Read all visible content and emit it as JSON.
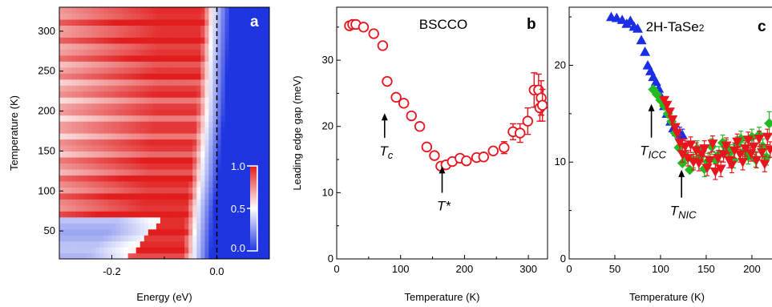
{
  "chart_data": [
    {
      "panel": "a",
      "type": "heatmap",
      "panel_letter": "a",
      "xlabel": "Energy (eV)",
      "ylabel": "Temperature (K)",
      "xlim": [
        -0.3,
        0.1
      ],
      "ylim": [
        15,
        330
      ],
      "xticks": [
        -0.2,
        0.0
      ],
      "xtick_labels": [
        "-0.2",
        "0.0"
      ],
      "yticks": [
        50,
        100,
        150,
        200,
        250,
        300
      ],
      "ytick_labels": [
        "50",
        "100",
        "150",
        "200",
        "250",
        "300"
      ],
      "colorbar": {
        "range": [
          0.0,
          1.0
        ],
        "labels": [
          "0.0",
          "0.5",
          "1.0"
        ],
        "colors": [
          "#1f35e0",
          "#ffffff",
          "#e11d1d"
        ]
      },
      "fermi_line_x": 0.0,
      "edge_profile": {
        "temperatures": [
          20,
          50,
          80,
          100,
          120,
          150,
          175,
          200,
          250,
          300,
          330
        ],
        "edge_energy": [
          -0.045,
          -0.042,
          -0.038,
          -0.034,
          -0.03,
          -0.026,
          -0.022,
          -0.018,
          -0.014,
          -0.01,
          -0.008
        ],
        "low_T_blue_below": 70
      }
    },
    {
      "panel": "b",
      "type": "scatter",
      "panel_letter": "b",
      "title": "BSCCO",
      "xlabel": "Temperature (K)",
      "ylabel": "Leading edge gap (meV)",
      "xlim": [
        0,
        330
      ],
      "ylim": [
        0,
        38
      ],
      "xticks": [
        0,
        100,
        200,
        300
      ],
      "yticks": [
        0,
        10,
        20,
        30
      ],
      "marker_color": "#e8141e",
      "series": [
        {
          "x": [
            20,
            25,
            30,
            42,
            58,
            72,
            79,
            93,
            105,
            117,
            130,
            141,
            153,
            163,
            171,
            181,
            193,
            203,
            219,
            230,
            245,
            262,
            276,
            287,
            299,
            309,
            316,
            318,
            320,
            322
          ],
          "y": [
            35.2,
            35.4,
            35.4,
            35.0,
            34.0,
            32.2,
            26.8,
            24.4,
            23.5,
            21.6,
            20.0,
            16.9,
            15.6,
            14.0,
            14.2,
            14.7,
            15.2,
            14.8,
            15.3,
            15.4,
            16.3,
            16.8,
            19.2,
            19.0,
            20.8,
            25.5,
            25.5,
            22.8,
            24.3,
            23.2
          ],
          "yerr": [
            0,
            0,
            0,
            0,
            0,
            0,
            0,
            0,
            0,
            0,
            0,
            0,
            0,
            0,
            0,
            0,
            0,
            0,
            0,
            0,
            0.6,
            0.9,
            1.2,
            1.4,
            2.0,
            2.6,
            2.4,
            2.0,
            2.6,
            2.4
          ]
        }
      ],
      "annotations": [
        {
          "label": "T",
          "sub": "c",
          "x": 75,
          "y": 17.8,
          "arrow_to_y": 22.0
        },
        {
          "label": "T*",
          "sub": "",
          "x": 165,
          "y": 9.5,
          "arrow_to_y": 14.0
        }
      ]
    },
    {
      "panel": "c",
      "type": "scatter",
      "panel_letter": "c",
      "title": "2H-TaSe",
      "title_sub": "2",
      "xlabel": "Temperature (K)",
      "ylabel": "",
      "xlim": [
        0,
        222
      ],
      "ylim": [
        0,
        26
      ],
      "xticks": [
        0,
        50,
        100,
        150,
        200
      ],
      "yticks": [
        0,
        10,
        20
      ],
      "series": [
        {
          "marker": "triangle-up",
          "color": "#1a2ee8",
          "x": [
            46,
            52,
            58,
            63,
            67,
            71,
            75,
            79,
            83,
            86,
            89,
            92,
            95,
            98,
            101,
            104,
            107,
            111,
            114,
            118,
            121,
            124
          ],
          "y": [
            25.0,
            24.9,
            24.7,
            24.3,
            24.6,
            24.0,
            23.8,
            22.6,
            21.4,
            20.0,
            19.4,
            18.8,
            18.3,
            17.6,
            16.7,
            15.8,
            15.0,
            14.2,
            13.5,
            13.1,
            13.0,
            12.8
          ],
          "yerr": [
            0,
            0,
            0,
            0,
            0,
            0,
            0,
            0,
            0,
            0,
            0,
            0,
            0,
            0,
            0,
            0,
            0,
            0,
            0,
            0.6,
            0.6,
            0.6
          ]
        },
        {
          "marker": "diamond",
          "color": "#22bb22",
          "x": [
            92,
            96,
            100,
            104,
            108,
            112,
            116,
            120,
            124,
            128,
            132,
            136,
            140,
            144,
            148,
            152,
            156,
            160,
            164,
            168,
            172,
            176,
            180,
            184,
            188,
            192,
            196,
            200,
            204,
            208,
            212,
            216,
            219
          ],
          "y": [
            17.5,
            17.0,
            16.4,
            15.8,
            15.0,
            14.2,
            13.0,
            11.5,
            9.9,
            10.6,
            9.2,
            10.2,
            11.4,
            10.6,
            9.3,
            10.1,
            11.6,
            10.2,
            10.8,
            12.0,
            11.5,
            11.0,
            10.2,
            11.8,
            12.4,
            11.2,
            10.6,
            12.6,
            10.3,
            12.8,
            11.6,
            10.5,
            14.0
          ],
          "yerr": [
            0,
            0,
            0,
            0,
            0,
            0,
            0,
            0,
            0,
            0,
            0,
            0.8,
            0.8,
            0.8,
            0.8,
            0.8,
            0.8,
            0.8,
            0.8,
            0.8,
            0.8,
            0.8,
            0.8,
            0.8,
            0.8,
            0.8,
            0.8,
            0.8,
            0.8,
            0.8,
            0.8,
            0.8,
            1.2
          ]
        },
        {
          "marker": "triangle-down",
          "color": "#e8141e",
          "x": [
            104,
            107,
            110,
            113,
            116,
            118,
            121,
            124,
            127,
            130,
            133,
            136,
            139,
            142,
            145,
            148,
            151,
            154,
            157,
            160,
            163,
            166,
            169,
            172,
            175,
            178,
            181,
            184,
            187,
            190,
            193,
            196,
            199,
            202,
            205,
            208,
            211,
            214,
            217,
            220
          ],
          "y": [
            16.4,
            15.9,
            15.2,
            14.4,
            13.6,
            13.0,
            12.0,
            10.8,
            11.6,
            10.4,
            11.8,
            10.0,
            11.2,
            9.9,
            10.8,
            11.4,
            9.4,
            10.2,
            11.9,
            9.0,
            10.4,
            9.3,
            10.8,
            11.7,
            10.2,
            9.7,
            11.2,
            12.1,
            10.8,
            10.0,
            11.4,
            12.3,
            10.9,
            11.6,
            10.2,
            12.4,
            11.0,
            9.8,
            12.6,
            11.3
          ],
          "yerr": [
            0,
            0,
            0,
            0,
            0,
            0,
            0.8,
            0.8,
            0.8,
            0.8,
            0.8,
            0.8,
            0.8,
            0.8,
            0.8,
            0.8,
            0.8,
            0.8,
            0.8,
            0.8,
            0.8,
            0.8,
            0.8,
            0.8,
            0.8,
            0.8,
            0.8,
            0.8,
            0.8,
            0.8,
            0.8,
            0.8,
            0.8,
            0.8,
            0.8,
            0.8,
            0.8,
            0.8,
            0.8,
            0.8
          ]
        }
      ],
      "annotations": [
        {
          "label": "T",
          "sub": "ICC",
          "x": 90,
          "y": 12.2,
          "arrow_to_y": 16.0
        },
        {
          "label": "T",
          "sub": "NIC",
          "x": 123,
          "y": 6.0,
          "arrow_to_y": 9.2
        }
      ]
    }
  ]
}
